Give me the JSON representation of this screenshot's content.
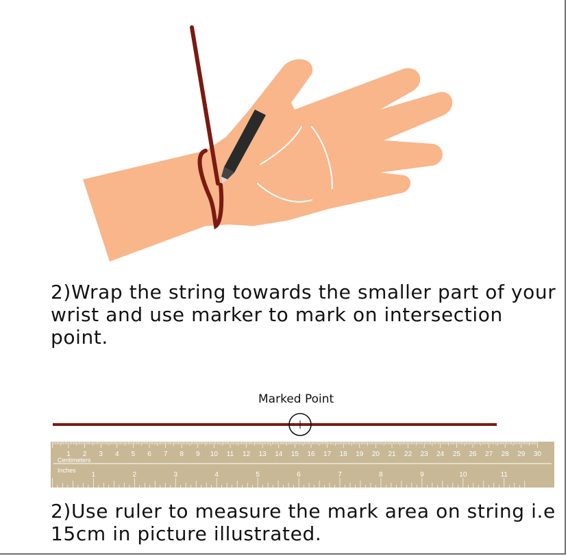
{
  "steps": {
    "wrap_text": "2)Wrap the string towards the smaller part of your wrist and use marker to mark on intersection point.",
    "measure_text": "2)Use ruler to measure the mark area on string i.e 15cm in picture illustrated."
  },
  "marked_point_label": "Marked Point",
  "ruler": {
    "cm_unit_label": "Centimeters",
    "inch_unit_label": "Inches",
    "cm_labels": [
      "1",
      "2",
      "3",
      "4",
      "5",
      "6",
      "7",
      "8",
      "9",
      "10",
      "11",
      "12",
      "13",
      "14",
      "15",
      "16",
      "17",
      "18",
      "19",
      "20",
      "21",
      "22",
      "23",
      "24",
      "25",
      "26",
      "27",
      "28",
      "29",
      "30"
    ],
    "inch_labels": [
      "1",
      "2",
      "3",
      "4",
      "5",
      "6",
      "7",
      "8",
      "9",
      "10",
      "11"
    ]
  },
  "colors": {
    "skin": "#F8B68A",
    "string": "#7A1A12",
    "marker": "#2A2A2A",
    "ruler_bg": "#C8B896",
    "ruler_ink": "#FFFFFF"
  }
}
